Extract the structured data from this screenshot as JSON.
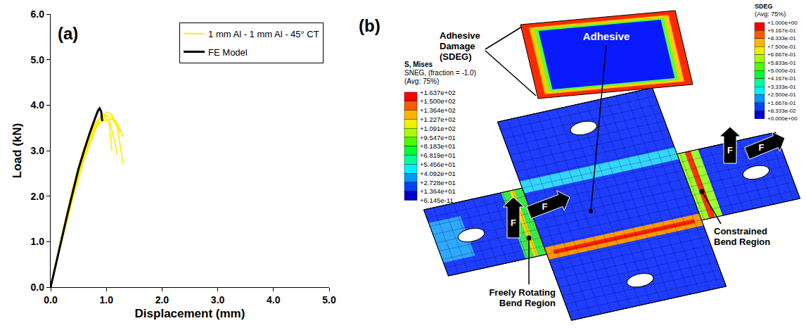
{
  "chart_data": {
    "type": "line",
    "panel_label": "(a)",
    "x_label": "Displacement (mm)",
    "y_label": "Load (kN)",
    "xlim": [
      0,
      5
    ],
    "ylim": [
      0,
      6
    ],
    "xticks": [
      {
        "value": 0,
        "label": "0.0"
      },
      {
        "value": 1,
        "label": "1.0"
      },
      {
        "value": 2,
        "label": "2.0"
      },
      {
        "value": 3,
        "label": "3.0"
      },
      {
        "value": 4,
        "label": "4.0"
      },
      {
        "value": 5,
        "label": "5.0"
      }
    ],
    "yticks": [
      {
        "value": 0,
        "label": "0.0"
      },
      {
        "value": 1,
        "label": "1.0"
      },
      {
        "value": 2,
        "label": "2.0"
      },
      {
        "value": 3,
        "label": "3.0"
      },
      {
        "value": 4,
        "label": "4.0"
      },
      {
        "value": 5,
        "label": "5.0"
      },
      {
        "value": 6,
        "label": "6.0"
      }
    ],
    "grid": false,
    "legend": "top right",
    "series": [
      {
        "name": "1 mm Al - 1 mm Al - 45° CT",
        "color": "#ffea00",
        "x": [
          0,
          0.2,
          0.4,
          0.6,
          0.8,
          0.95,
          1.05,
          1.15,
          1.2
        ],
        "values": [
          0,
          1.1,
          2.1,
          2.95,
          3.55,
          3.8,
          3.7,
          3.2,
          2.9
        ]
      },
      {
        "name": "1 mm Al - 1 mm Al - 45° CT",
        "color": "#ffea00",
        "x": [
          0,
          0.2,
          0.4,
          0.6,
          0.8,
          1.0,
          1.1,
          1.2,
          1.3
        ],
        "values": [
          0,
          1.0,
          1.95,
          2.8,
          3.45,
          3.85,
          3.8,
          3.5,
          2.7
        ]
      },
      {
        "name": "1 mm Al - 1 mm Al - 45° CT",
        "color": "#ffea00",
        "x": [
          0,
          0.2,
          0.4,
          0.6,
          0.8,
          0.9,
          1.0,
          1.05,
          1.1
        ],
        "values": [
          0,
          1.15,
          2.2,
          3.05,
          3.6,
          3.75,
          3.7,
          3.6,
          3.0
        ]
      },
      {
        "name": "1 mm Al - 1 mm Al - 45° CT",
        "color": "#ffea00",
        "x": [
          0,
          0.2,
          0.4,
          0.6,
          0.8,
          1.0,
          1.1,
          1.2,
          1.3
        ],
        "values": [
          0,
          1.05,
          2.0,
          2.85,
          3.5,
          3.78,
          3.75,
          3.6,
          3.3
        ]
      },
      {
        "name": "1 mm Al - 1 mm Al - 45° CT",
        "color": "#ffea00",
        "x": [
          0,
          0.2,
          0.4,
          0.6,
          0.85,
          0.95,
          1.1,
          1.2,
          1.25
        ],
        "values": [
          0,
          1.1,
          2.1,
          2.9,
          3.6,
          3.65,
          3.7,
          3.55,
          3.4
        ]
      },
      {
        "name": "FE Model",
        "color": "#000000",
        "x": [
          0,
          0.1,
          0.2,
          0.3,
          0.4,
          0.5,
          0.6,
          0.7,
          0.8,
          0.85,
          0.88,
          0.91,
          0.92,
          0.93
        ],
        "values": [
          0,
          0.55,
          1.1,
          1.6,
          2.1,
          2.6,
          3.0,
          3.38,
          3.72,
          3.88,
          3.93,
          3.85,
          3.7,
          3.65
        ]
      }
    ]
  },
  "diagram": {
    "panel_label": "(b)",
    "mises_legend": {
      "title": [
        "S, Mises",
        "SNEG, (fraction = -1.0)",
        "(Avg: 75%)"
      ],
      "labels": [
        "+1.637e+02",
        "+1.500e+02",
        "+1.364e+02",
        "+1.227e+02",
        "+1.091e+02",
        "+9.547e+01",
        "+8.183e+01",
        "+6.819e+01",
        "+5.456e+01",
        "+4.092e+01",
        "+2.728e+01",
        "+1.364e+01",
        "+6.145e-11"
      ]
    },
    "sdeg_legend": {
      "title": [
        "SDEG",
        "(Avg: 75%)"
      ],
      "labels": [
        "+1.000e+00",
        "+9.167e-01",
        "+8.333e-01",
        "+7.500e-01",
        "+6.667e-01",
        "+5.833e-01",
        "+5.000e-01",
        "+4.167e-01",
        "+3.333e-01",
        "+2.500e-01",
        "+1.667e-01",
        "+8.333e-02",
        "+0.000e+00"
      ]
    },
    "adhesive_damage_label": [
      "Adhesive",
      "Damage",
      "(SDEG)"
    ],
    "adhesive_label": "Adhesive",
    "constrained_label": [
      "Constrained",
      "Bend Region"
    ],
    "freely_rotating_label": [
      "Freely Rotating",
      "Bend Region"
    ],
    "force_label": "F"
  }
}
